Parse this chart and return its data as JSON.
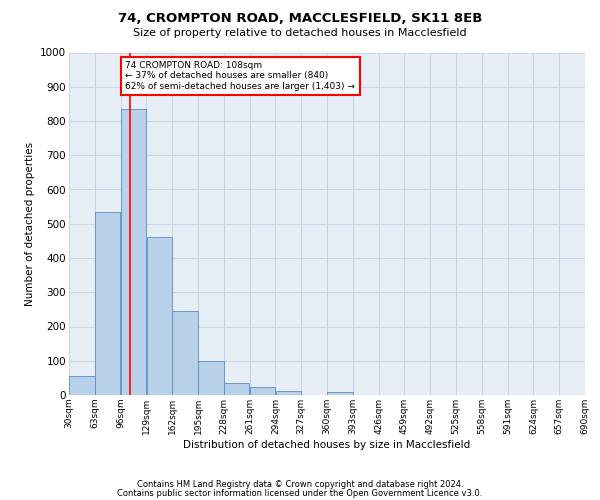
{
  "title1": "74, CROMPTON ROAD, MACCLESFIELD, SK11 8EB",
  "title2": "Size of property relative to detached houses in Macclesfield",
  "xlabel": "Distribution of detached houses by size in Macclesfield",
  "ylabel": "Number of detached properties",
  "bar_color": "#b8d0e8",
  "bar_edge_color": "#5590c8",
  "grid_color": "#c8d4e8",
  "background_color": "#e8eef6",
  "annotation_text": "74 CROMPTON ROAD: 108sqm\n← 37% of detached houses are smaller (840)\n62% of semi-detached houses are larger (1,403) →",
  "vline_color": "red",
  "vline_x": 108,
  "bin_edges": [
    30,
    63,
    96,
    129,
    162,
    195,
    228,
    261,
    294,
    327,
    360,
    393,
    426,
    459,
    492,
    525,
    558,
    591,
    624,
    657,
    690
  ],
  "bar_heights": [
    55,
    535,
    835,
    460,
    245,
    98,
    35,
    22,
    12,
    0,
    8,
    0,
    0,
    0,
    0,
    0,
    0,
    0,
    0,
    0
  ],
  "ylim": [
    0,
    1000
  ],
  "yticks": [
    0,
    100,
    200,
    300,
    400,
    500,
    600,
    700,
    800,
    900,
    1000
  ],
  "footer1": "Contains HM Land Registry data © Crown copyright and database right 2024.",
  "footer2": "Contains public sector information licensed under the Open Government Licence v3.0."
}
